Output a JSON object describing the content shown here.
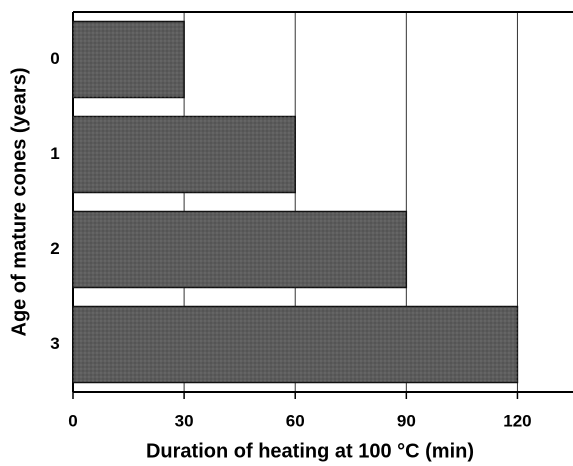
{
  "chart_data": {
    "type": "barh",
    "xlabel": "Duration of heating at 100 °C (min)",
    "ylabel": "Age of mature cones (years)",
    "categories": [
      "0",
      "1",
      "2",
      "3"
    ],
    "values": [
      30,
      60,
      90,
      120
    ],
    "color": "#5c5c5c",
    "xlim": [
      0,
      135
    ],
    "xticks": [
      0,
      30,
      60,
      90,
      120
    ],
    "grid": true
  }
}
